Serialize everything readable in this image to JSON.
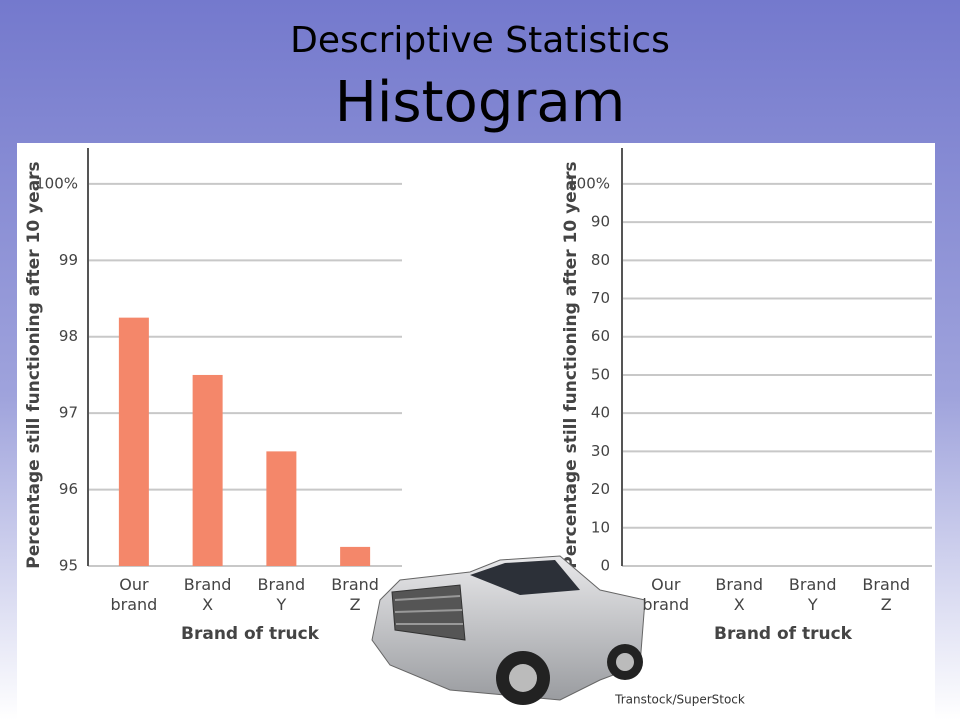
{
  "title": "Descriptive Statistics",
  "subtitle": "Histogram",
  "credit": "Transtock/SuperStock",
  "chart_data": [
    {
      "type": "bar",
      "categories": [
        "Our brand",
        "Brand X",
        "Brand Y",
        "Brand Z"
      ],
      "values": [
        98.25,
        97.5,
        96.5,
        95.25
      ],
      "color": "#f4876a",
      "ylabel": "Percentage still functioning after 10 years",
      "xlabel": "Brand of truck",
      "ylim": [
        95,
        100.47
      ],
      "yticks": [
        95,
        96,
        97,
        98,
        99,
        {
          "value": 100,
          "label": "100%"
        }
      ],
      "grid": true
    },
    {
      "type": "bar",
      "categories": [
        "Our brand",
        "Brand X",
        "Brand Y",
        "Brand Z"
      ],
      "values": [
        null,
        null,
        null,
        null
      ],
      "color": "#f4876a",
      "ylabel": "Percentage still functioning after 10 years",
      "xlabel": "Brand of truck",
      "ylim": [
        0,
        109.4
      ],
      "yticks": [
        0,
        10,
        20,
        30,
        40,
        50,
        60,
        70,
        80,
        90,
        {
          "value": 100,
          "label": "100%"
        }
      ],
      "grid": true
    }
  ]
}
